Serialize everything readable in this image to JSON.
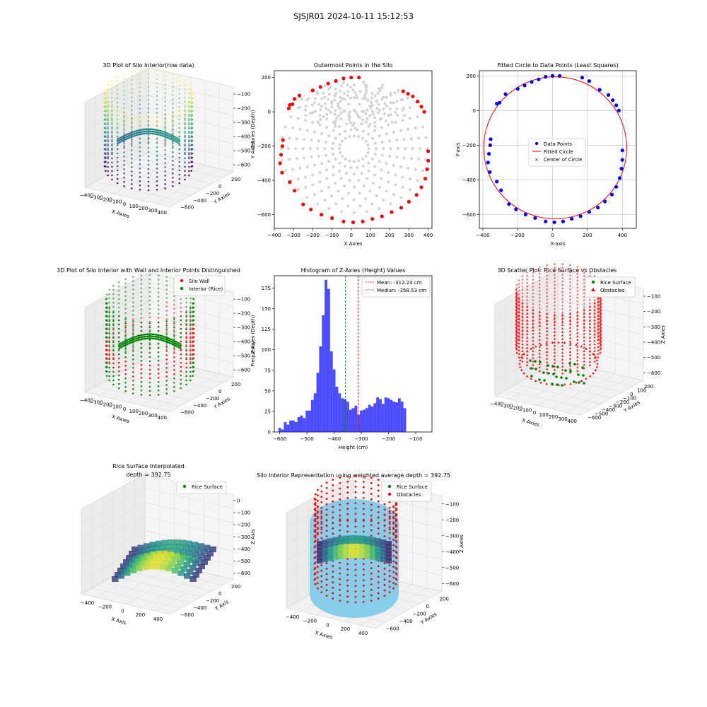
{
  "figure": {
    "suptitle": "SJSJR01 2024-10-11 15:12:53"
  },
  "chart_data": [
    {
      "id": "p1",
      "type": "scatter3d",
      "title": "3D Plot of Silo Interior(row data)",
      "xlabel": "X Axies",
      "ylabel": "Y Axies",
      "zlabel": "Z Axies (Depth)",
      "xticks": [
        "−400",
        "−300",
        "−200",
        "−100",
        "0",
        "100",
        "200",
        "300",
        "400"
      ],
      "yticks": [
        "200",
        "0",
        "−200",
        "−400",
        "−600"
      ],
      "zticks": [
        "−100",
        "−200",
        "−300",
        "−400",
        "−500",
        "−600"
      ],
      "colormap": "viridis",
      "center": [
        0,
        -220
      ],
      "radius": 400,
      "zrange": [
        -620,
        -60
      ]
    },
    {
      "id": "p2",
      "type": "scatter",
      "title": "Outermost Points in the Silo",
      "xlabel": "X Axies",
      "ylabel": "Y Axies",
      "xlim": [
        -400,
        420
      ],
      "ylim": [
        -680,
        240
      ],
      "xticks": [
        -400,
        -300,
        -200,
        -100,
        0,
        100,
        200,
        300,
        400
      ],
      "yticks": [
        -600,
        -400,
        -200,
        0,
        200
      ],
      "colors": {
        "outer": "#ff0000",
        "inner": "#d3d3d3"
      },
      "outer_points": [
        [
          -360,
          -355
        ],
        [
          -370,
          -300
        ],
        [
          -365,
          -250
        ],
        [
          -358,
          -200
        ],
        [
          -355,
          -165
        ],
        [
          -320,
          -410
        ],
        [
          -295,
          -460
        ],
        [
          -250,
          -540
        ],
        [
          -210,
          -570
        ],
        [
          -155,
          -600
        ],
        [
          -100,
          -620
        ],
        [
          -40,
          -640
        ],
        [
          10,
          -645
        ],
        [
          60,
          -640
        ],
        [
          110,
          -625
        ],
        [
          160,
          -610
        ],
        [
          210,
          -585
        ],
        [
          260,
          -560
        ],
        [
          300,
          -525
        ],
        [
          340,
          -485
        ],
        [
          365,
          -440
        ],
        [
          385,
          -390
        ],
        [
          395,
          -335
        ],
        [
          400,
          -285
        ],
        [
          400,
          -230
        ],
        [
          380,
          0
        ],
        [
          365,
          30
        ],
        [
          345,
          60
        ],
        [
          320,
          90
        ],
        [
          295,
          105
        ],
        [
          270,
          120
        ],
        [
          -200,
          125
        ],
        [
          -160,
          145
        ],
        [
          -120,
          165
        ],
        [
          -80,
          180
        ],
        [
          -40,
          195
        ],
        [
          0,
          200
        ],
        [
          40,
          200
        ],
        [
          -270,
          95
        ],
        [
          -295,
          75
        ],
        [
          -320,
          40
        ],
        [
          -325,
          20
        ],
        [
          -305,
          45
        ]
      ]
    },
    {
      "id": "p3",
      "type": "scatter",
      "title": "Fitted Circle to Data Points (Least Squares)",
      "xlabel": "X-axis",
      "ylabel": "Y-axis",
      "xlim": [
        -420,
        480
      ],
      "ylim": [
        -680,
        230
      ],
      "xticks": [
        -400,
        -200,
        0,
        200,
        400
      ],
      "yticks": [
        -600,
        -400,
        -200,
        0,
        200
      ],
      "legend": [
        "Data Points",
        "Fitted Circle",
        "Center of Circle"
      ],
      "colors": {
        "points": "#0000ff",
        "circle": "#ff0000",
        "center": "#008000"
      },
      "circle": {
        "cx": 15,
        "cy": -215,
        "r": 410
      },
      "points": [
        [
          -360,
          -355
        ],
        [
          -370,
          -300
        ],
        [
          -365,
          -250
        ],
        [
          -358,
          -200
        ],
        [
          -355,
          -165
        ],
        [
          -320,
          -410
        ],
        [
          -295,
          -460
        ],
        [
          -250,
          -540
        ],
        [
          -210,
          -570
        ],
        [
          -155,
          -600
        ],
        [
          -100,
          -620
        ],
        [
          -40,
          -640
        ],
        [
          10,
          -645
        ],
        [
          60,
          -640
        ],
        [
          110,
          -625
        ],
        [
          160,
          -610
        ],
        [
          210,
          -585
        ],
        [
          260,
          -560
        ],
        [
          300,
          -525
        ],
        [
          340,
          -485
        ],
        [
          365,
          -440
        ],
        [
          385,
          -390
        ],
        [
          395,
          -335
        ],
        [
          400,
          -285
        ],
        [
          400,
          -230
        ],
        [
          380,
          0
        ],
        [
          365,
          30
        ],
        [
          345,
          60
        ],
        [
          320,
          90
        ],
        [
          270,
          120
        ],
        [
          -200,
          125
        ],
        [
          -160,
          145
        ],
        [
          -120,
          165
        ],
        [
          -80,
          180
        ],
        [
          -40,
          195
        ],
        [
          0,
          200
        ],
        [
          40,
          200
        ],
        [
          -270,
          95
        ],
        [
          -320,
          40
        ],
        [
          -305,
          45
        ],
        [
          170,
          190
        ],
        [
          210,
          170
        ]
      ]
    },
    {
      "id": "p4",
      "type": "scatter3d",
      "title": "3D Plot of Silo Interior with Wall and Interior Points Distinguished",
      "xlabel": "X Axies",
      "ylabel": "Y Axies",
      "zlabel": "Z Axies (Depth)",
      "xticks": [
        "−400",
        "−300",
        "−200",
        "−100",
        "0",
        "100",
        "200",
        "300",
        "400"
      ],
      "yticks": [
        "200",
        "0",
        "−200",
        "−400",
        "−600"
      ],
      "zticks": [
        "−100",
        "−200",
        "−300",
        "−400",
        "−500",
        "−600"
      ],
      "legend": [
        "Silo Wall",
        "Interior (Rice)"
      ],
      "colors": {
        "wall": "#ff0000",
        "interior": "#008000"
      }
    },
    {
      "id": "p5",
      "type": "bar",
      "title": "Histogram of Z-Axies (Height) Values",
      "xlabel": "Height (cm)",
      "ylabel": "Frequency",
      "xlim": [
        -620,
        -40
      ],
      "ylim": [
        0,
        190
      ],
      "xticks": [
        -600,
        -500,
        -400,
        -300,
        -200,
        -100
      ],
      "yticks": [
        0,
        25,
        50,
        75,
        100,
        125,
        150,
        175
      ],
      "bar_color": "#0000ff",
      "bin_width": 10,
      "bin_start": -605,
      "values": [
        5,
        3,
        12,
        9,
        14,
        14,
        12,
        18,
        20,
        17,
        26,
        26,
        39,
        47,
        72,
        104,
        142,
        185,
        174,
        98,
        76,
        55,
        47,
        41,
        40,
        37,
        27,
        29,
        32,
        21,
        26,
        27,
        29,
        33,
        31,
        35,
        42,
        40,
        34,
        42,
        41,
        39,
        37,
        36,
        41,
        37,
        29
      ],
      "mean": -312.24,
      "median": -358.53,
      "legend": [
        "Mean: -312.24 cm",
        "Median: -358.53 cm"
      ],
      "line_colors": {
        "mean": "#ff0000",
        "median": "#008000"
      }
    },
    {
      "id": "p6",
      "type": "scatter3d",
      "title": "3D Scatter Plot: Rice Surface vs Obstacles",
      "xlabel": "X Axies",
      "ylabel": "Y Axies",
      "zlabel": "Z Axies",
      "xticks": [
        "−400",
        "−300",
        "−200",
        "−100",
        "0",
        "100",
        "200",
        "300",
        "400"
      ],
      "yticks": [
        "200",
        "100",
        "0",
        "−100",
        "−200",
        "−300",
        "−400",
        "−500",
        "−600"
      ],
      "zticks": [
        "−100",
        "−200",
        "−300",
        "−400",
        "−500",
        "−600"
      ],
      "legend": [
        "Rice Surface",
        "Obstacles"
      ],
      "colors": {
        "rice": "#008000",
        "obstacles": "#ff0000"
      }
    },
    {
      "id": "p7",
      "type": "surface3d",
      "title": "Rice Surface Interpolated",
      "subtitle": "depth = 392.75",
      "xlabel": "X Axis",
      "ylabel": "Y Axis",
      "zlabel": "Z Axis",
      "xticks": [
        "−400",
        "−200",
        "0",
        "200",
        "400"
      ],
      "yticks": [
        "200",
        "0",
        "−200",
        "−400",
        "−600"
      ],
      "zticks": [
        "0",
        "−100",
        "−200",
        "−300",
        "−400",
        "−500",
        "−600"
      ],
      "legend": [
        "Rice Surface"
      ],
      "colors": {
        "rice": "#008000"
      }
    },
    {
      "id": "p8",
      "type": "surface3d",
      "title": "Silo Interior Representation using weighted average depth = 392.75",
      "xlabel": "X Axies",
      "ylabel": "Y Axies",
      "zlabel": "Z Axies",
      "xticks": [
        "−400",
        "−200",
        "0",
        "200",
        "400"
      ],
      "yticks": [
        "200",
        "0",
        "−200",
        "−400",
        "−600"
      ],
      "zticks": [
        "−100",
        "−200",
        "−300",
        "−400",
        "−500",
        "−600"
      ],
      "legend": [
        "Rice Surface",
        "Obstacles"
      ],
      "colors": {
        "rice": "#008000",
        "obstacles": "#ff0000",
        "cylinder": "#87ceeb"
      }
    }
  ]
}
